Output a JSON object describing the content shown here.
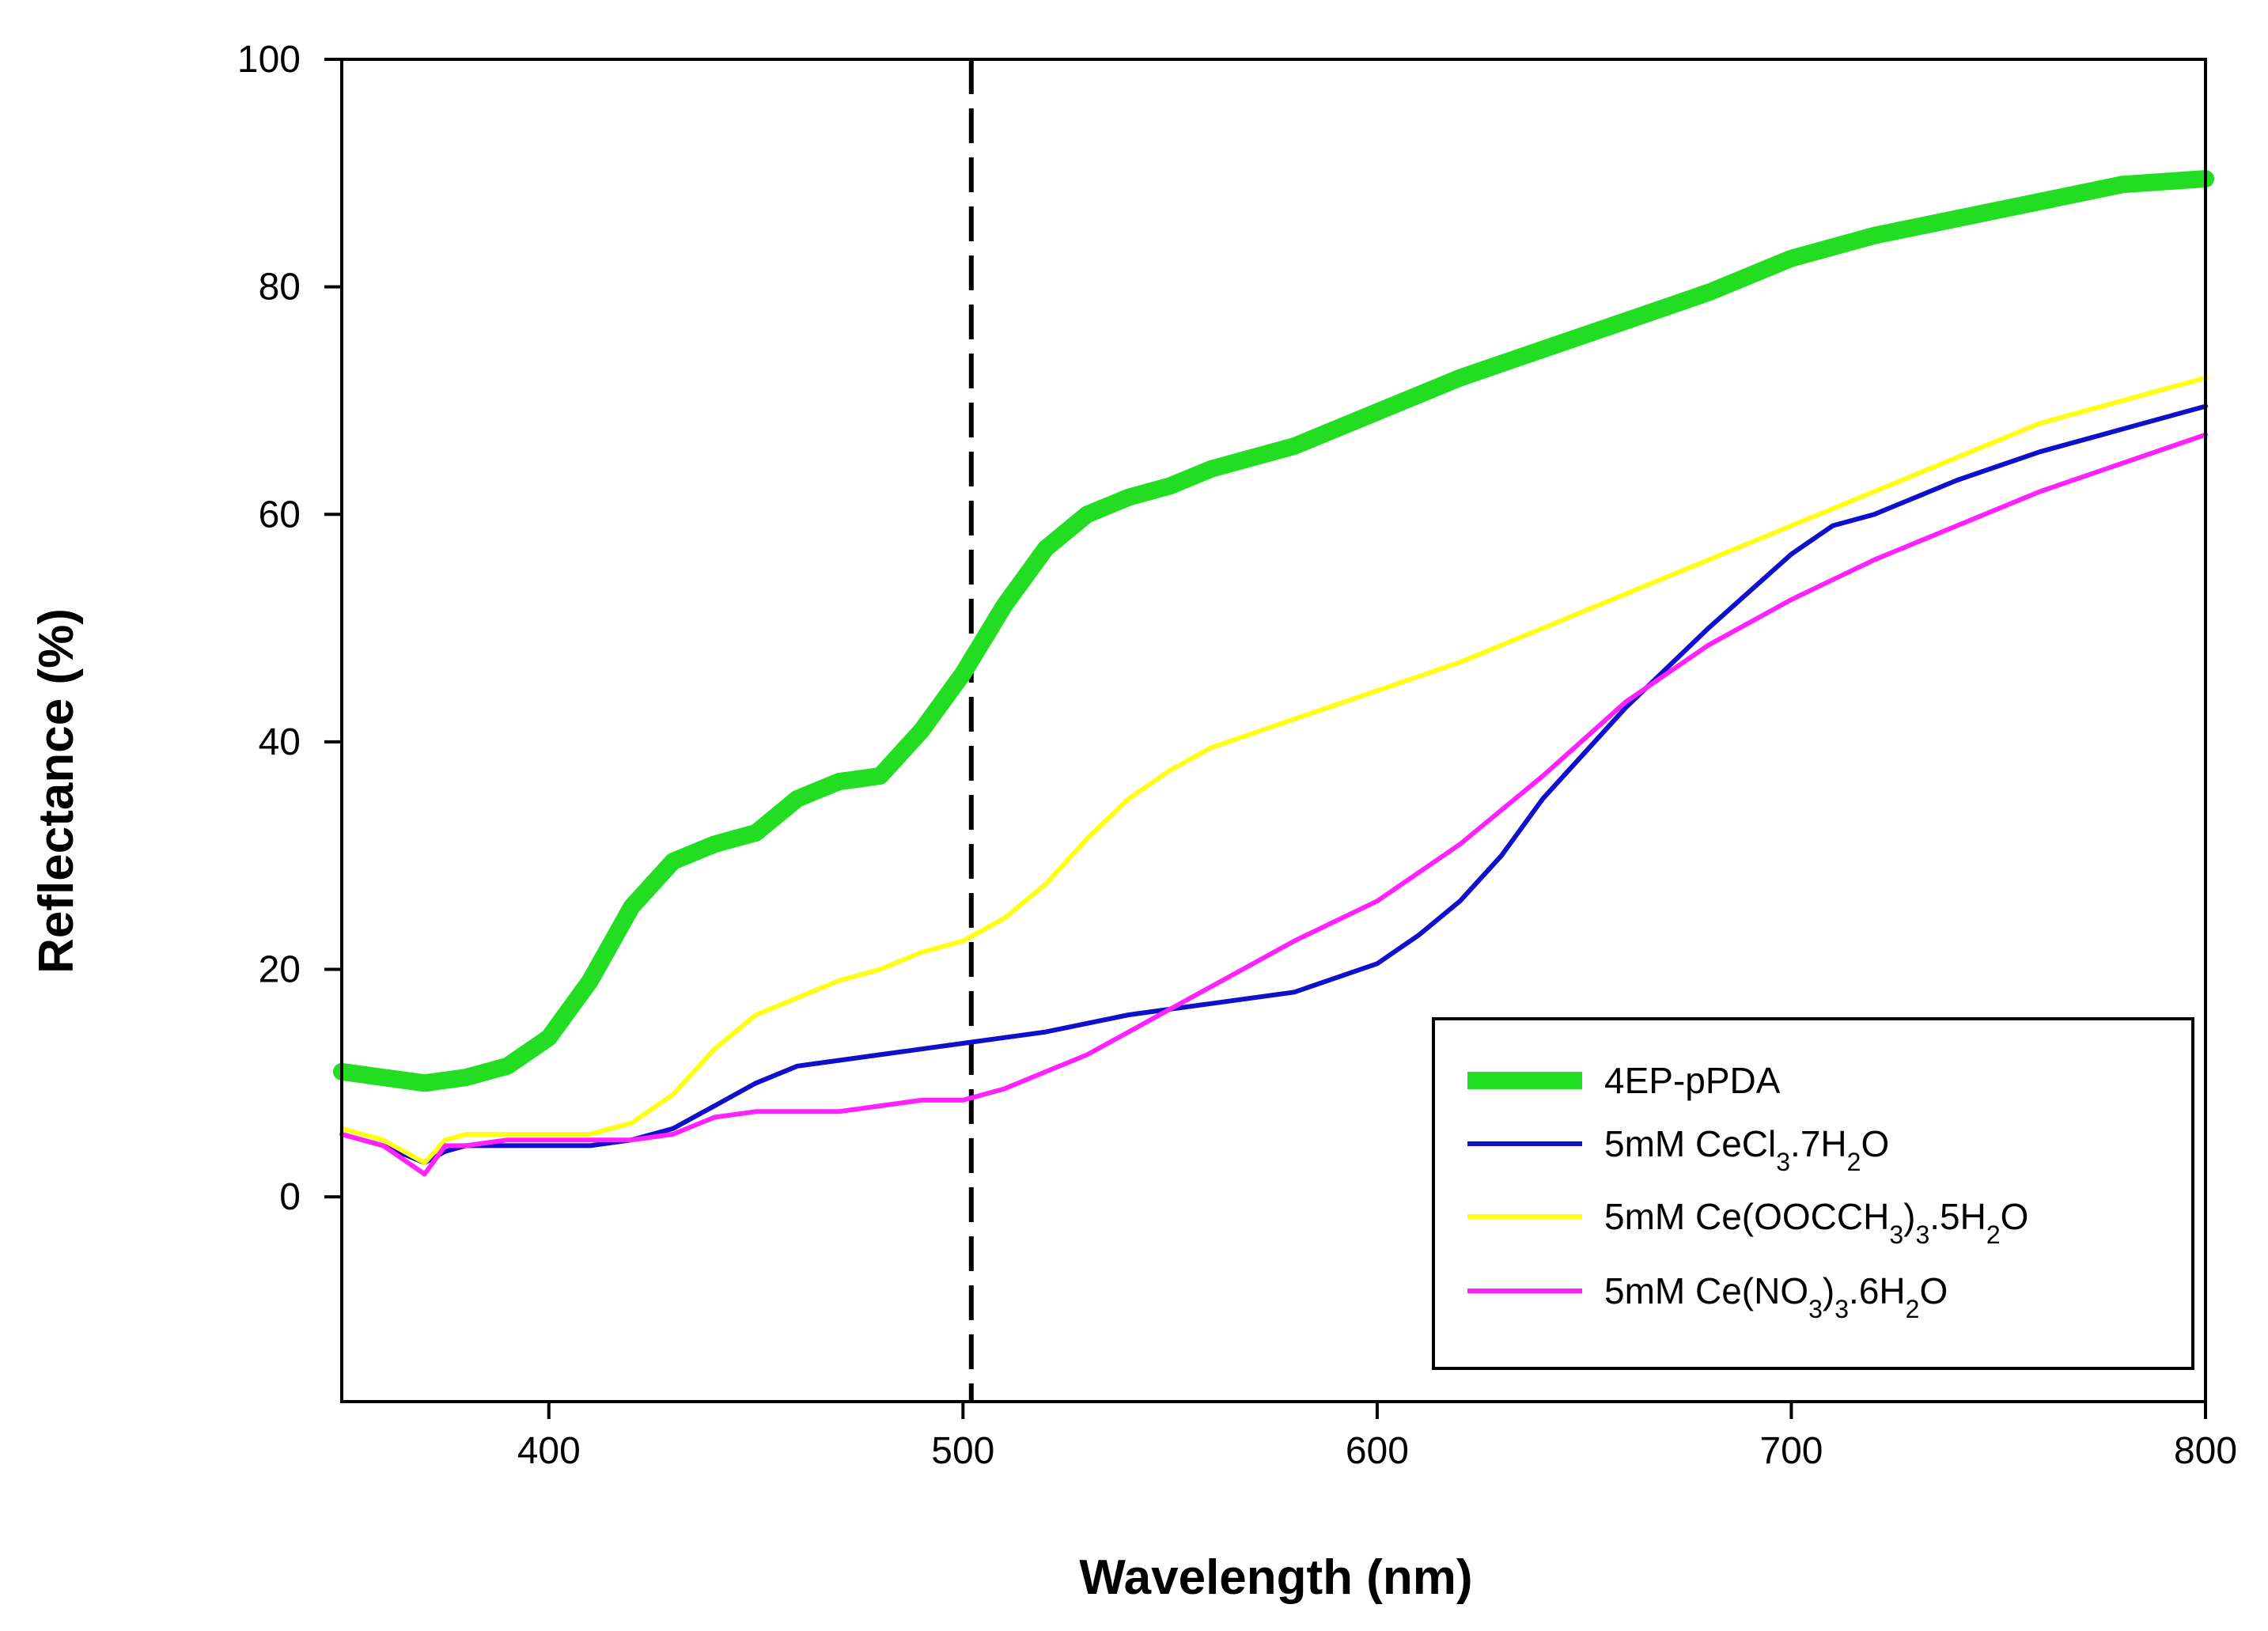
{
  "chart_data": {
    "type": "line",
    "title": "",
    "xlabel": "Wavelength (nm)",
    "ylabel": "Reflectance (%)",
    "xlim": [
      350,
      800
    ],
    "ylim": [
      -18,
      100
    ],
    "xticks": [
      400,
      500,
      600,
      700,
      800
    ],
    "yticks": [
      0,
      20,
      40,
      60,
      80,
      100
    ],
    "xtick_labels": [
      "400",
      "500",
      "600",
      "700",
      "800"
    ],
    "ytick_labels": [
      "0",
      "20",
      "40",
      "60",
      "80",
      "100"
    ],
    "legend_position": "bottom-right",
    "reference_line": {
      "x": 502,
      "style": "dashed",
      "color": "#000000"
    },
    "series": [
      {
        "name": "4EP-pPDA",
        "legend_parts": [
          {
            "t": "4EP-pPDA",
            "s": ""
          }
        ],
        "color": "#22dd22",
        "style": "thick",
        "x": [
          350,
          360,
          370,
          380,
          390,
          400,
          410,
          420,
          430,
          440,
          450,
          460,
          470,
          480,
          490,
          500,
          510,
          520,
          530,
          540,
          550,
          560,
          580,
          600,
          620,
          640,
          660,
          680,
          700,
          720,
          740,
          760,
          780,
          800
        ],
        "y": [
          11,
          10.5,
          10,
          10.5,
          11.5,
          14,
          19,
          25.5,
          29.5,
          31,
          32,
          35,
          36.5,
          37,
          41,
          46,
          52,
          57,
          60,
          61.5,
          62.5,
          64,
          66,
          69,
          72,
          74.5,
          77,
          79.5,
          82.5,
          84.5,
          86,
          87.5,
          89,
          89.5
        ]
      },
      {
        "name": "5mM CeCl3.7H2O",
        "legend_parts": [
          {
            "t": "5mM CeCl",
            "s": ""
          },
          {
            "t": "3",
            "s": "sub"
          },
          {
            "t": ".7H",
            "s": ""
          },
          {
            "t": "2",
            "s": "sub"
          },
          {
            "t": "O",
            "s": ""
          }
        ],
        "color": "#1010cc",
        "style": "thin",
        "x": [
          350,
          360,
          370,
          375,
          380,
          390,
          400,
          410,
          420,
          430,
          440,
          450,
          460,
          470,
          480,
          490,
          500,
          520,
          540,
          560,
          580,
          600,
          610,
          620,
          630,
          640,
          660,
          680,
          700,
          710,
          720,
          740,
          760,
          780,
          800
        ],
        "y": [
          5.5,
          4.5,
          3,
          4,
          4.5,
          4.5,
          4.5,
          4.5,
          5,
          6,
          8,
          10,
          11.5,
          12,
          12.5,
          13,
          13.5,
          14.5,
          16,
          17,
          18,
          20.5,
          23,
          26,
          30,
          35,
          43,
          50,
          56.5,
          59,
          60,
          63,
          65.5,
          67.5,
          69.5
        ]
      },
      {
        "name": "5mM Ce(OOCCH3)3.5H2O",
        "legend_parts": [
          {
            "t": "5mM Ce(OOCCH",
            "s": ""
          },
          {
            "t": "3",
            "s": "sub"
          },
          {
            "t": ")",
            "s": ""
          },
          {
            "t": "3",
            "s": "sub"
          },
          {
            "t": ".5H",
            "s": ""
          },
          {
            "t": "2",
            "s": "sub"
          },
          {
            "t": "O",
            "s": ""
          }
        ],
        "color": "#ffff11",
        "style": "thin",
        "x": [
          350,
          360,
          370,
          375,
          380,
          390,
          400,
          410,
          420,
          430,
          440,
          450,
          460,
          470,
          480,
          490,
          500,
          510,
          520,
          530,
          540,
          550,
          560,
          580,
          600,
          620,
          640,
          660,
          680,
          700,
          720,
          740,
          760,
          780,
          800
        ],
        "y": [
          6,
          5,
          3,
          5,
          5.5,
          5.5,
          5.5,
          5.5,
          6.5,
          9,
          13,
          16,
          17.5,
          19,
          20,
          21.5,
          22.5,
          24.5,
          27.5,
          31.5,
          35,
          37.5,
          39.5,
          42,
          44.5,
          47,
          50,
          53,
          56,
          59,
          62,
          65,
          68,
          70,
          72
        ]
      },
      {
        "name": "5mM Ce(NO3)3.6H2O",
        "legend_parts": [
          {
            "t": "5mM Ce(NO",
            "s": ""
          },
          {
            "t": "3",
            "s": "sub"
          },
          {
            "t": ")",
            "s": ""
          },
          {
            "t": "3",
            "s": "sub"
          },
          {
            "t": ".6H",
            "s": ""
          },
          {
            "t": "2",
            "s": "sub"
          },
          {
            "t": "O",
            "s": ""
          }
        ],
        "color": "#ff22ff",
        "style": "thin",
        "x": [
          350,
          360,
          370,
          375,
          380,
          390,
          400,
          410,
          420,
          430,
          440,
          450,
          460,
          470,
          480,
          490,
          500,
          510,
          520,
          530,
          540,
          550,
          560,
          580,
          600,
          620,
          640,
          660,
          680,
          700,
          720,
          740,
          760,
          780,
          800
        ],
        "y": [
          5.5,
          4.5,
          2,
          4.5,
          4.5,
          5,
          5,
          5,
          5,
          5.5,
          7,
          7.5,
          7.5,
          7.5,
          8,
          8.5,
          8.5,
          9.5,
          11,
          12.5,
          14.5,
          16.5,
          18.5,
          22.5,
          26,
          31,
          37,
          43.5,
          48.5,
          52.5,
          56,
          59,
          62,
          64.5,
          67
        ]
      }
    ]
  }
}
